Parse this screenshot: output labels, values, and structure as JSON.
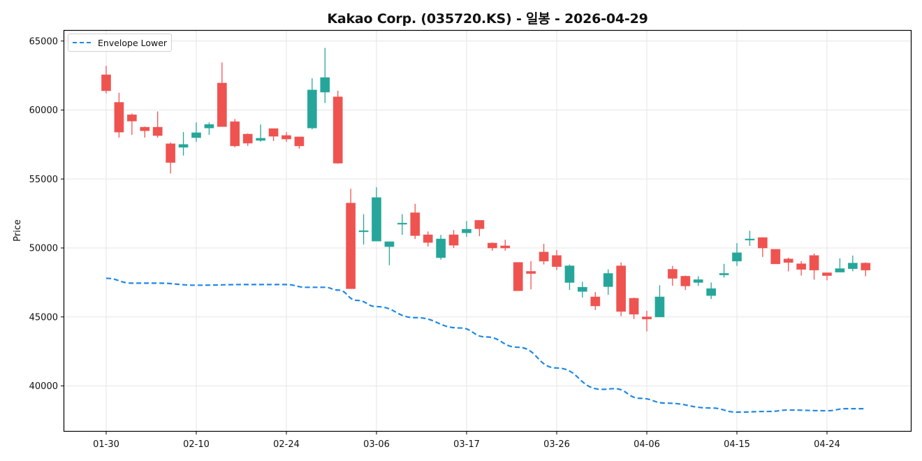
{
  "title": "Kakao Corp. (035720.KS) - 일봉 - 2026-04-29",
  "colors": {
    "up": "#26a69a",
    "down": "#ef5350",
    "envelope": "#1e88e5",
    "grid": "#e6e6e6",
    "axis": "#000000"
  },
  "legend": {
    "items": [
      {
        "label": "Envelope Lower",
        "style": "dashed",
        "color": "#1e88e5"
      }
    ]
  },
  "axes": {
    "ylabel": "Price",
    "yticks": [
      "40000",
      "45000",
      "50000",
      "55000",
      "60000",
      "65000"
    ],
    "xticks": [
      "01-30",
      "02-10",
      "02-24",
      "03-06",
      "03-17",
      "03-26",
      "04-06",
      "04-15",
      "04-24"
    ]
  },
  "chart_data": {
    "type": "candlestick",
    "title": "Kakao Corp. (035720.KS) - 일봉 - 2026-04-29",
    "xlabel": "",
    "ylabel": "Price",
    "ylim": [
      36900,
      66000
    ],
    "grid": true,
    "legend_position": "upper left",
    "xtick_labels": [
      "01-30",
      "02-10",
      "02-24",
      "03-06",
      "03-17",
      "03-26",
      "04-06",
      "04-15",
      "04-24"
    ],
    "xtick_indices": [
      0,
      7,
      14,
      21,
      28,
      35,
      42,
      49,
      56
    ],
    "ytick_values": [
      40000,
      45000,
      50000,
      55000,
      60000,
      65000
    ],
    "candles": {
      "open": [
        62550,
        60550,
        59650,
        58750,
        58750,
        57550,
        57300,
        58000,
        58700,
        61950,
        59150,
        58250,
        57800,
        58650,
        58150,
        58050,
        58700,
        61300,
        60950,
        53250,
        51200,
        50500,
        50100,
        51750,
        52550,
        50950,
        49300,
        50950,
        51100,
        52000,
        50350,
        50150,
        48950,
        48300,
        49700,
        49450,
        47500,
        46850,
        46450,
        47200,
        48700,
        46350,
        45000,
        45000,
        48450,
        47950,
        47500,
        46550,
        48050,
        49050,
        50600,
        50750,
        49900,
        49200,
        48850,
        49450,
        48200,
        48250,
        48500,
        48900
      ],
      "high": [
        63200,
        61250,
        59750,
        58800,
        59900,
        57650,
        58400,
        59100,
        59100,
        63450,
        59350,
        58300,
        58950,
        58650,
        58400,
        58050,
        62300,
        64500,
        61400,
        54300,
        52450,
        54400,
        50450,
        52450,
        53200,
        51200,
        50950,
        51300,
        51950,
        52000,
        50400,
        50600,
        48950,
        49050,
        50300,
        49850,
        48800,
        47550,
        46800,
        48450,
        48950,
        46400,
        45450,
        47300,
        48700,
        48000,
        47950,
        47500,
        48850,
        50350,
        51250,
        50750,
        49900,
        49300,
        49050,
        49600,
        48200,
        49250,
        49450,
        48950
      ],
      "low": [
        61200,
        58000,
        58200,
        58000,
        58000,
        55400,
        56700,
        57700,
        58200,
        58800,
        57300,
        57400,
        57700,
        57750,
        57700,
        57200,
        58600,
        60500,
        56100,
        47050,
        50250,
        50500,
        48750,
        50950,
        50650,
        50100,
        49150,
        50000,
        50800,
        50850,
        49800,
        49800,
        46900,
        47000,
        48800,
        48400,
        46950,
        46400,
        45500,
        46600,
        45050,
        44850,
        43950,
        45000,
        47250,
        46950,
        47250,
        46300,
        47850,
        48700,
        50150,
        49350,
        48850,
        48300,
        48000,
        47700,
        47650,
        48300,
        48300,
        47950
      ],
      "close": [
        61400,
        58400,
        59200,
        58500,
        58150,
        56200,
        57500,
        58350,
        58950,
        58800,
        57400,
        57600,
        57950,
        58100,
        57900,
        57400,
        61450,
        62350,
        56150,
        47050,
        51250,
        53650,
        50450,
        51800,
        50900,
        50400,
        50650,
        50200,
        51350,
        51400,
        50000,
        50000,
        46900,
        48150,
        49050,
        48650,
        48700,
        47150,
        45800,
        48150,
        45400,
        45200,
        44850,
        46450,
        47800,
        47250,
        47700,
        47050,
        48150,
        49650,
        50650,
        50000,
        48850,
        48950,
        48450,
        48400,
        48000,
        48500,
        48900,
        48400
      ]
    },
    "series": [
      {
        "name": "Envelope Lower",
        "style": "dashed",
        "x_index": [
          0,
          2,
          4,
          7,
          11,
          14,
          15.5,
          17,
          18,
          19.5,
          21,
          24,
          27.5,
          29.5,
          32,
          35,
          38.5,
          39.5,
          41.5,
          43.5,
          47,
          49,
          51.5,
          53,
          56,
          57.5,
          59
        ],
        "values": [
          47800,
          47450,
          47450,
          47300,
          47350,
          47350,
          47150,
          47150,
          46950,
          46200,
          45750,
          44950,
          44200,
          43550,
          42800,
          41300,
          39750,
          39800,
          39100,
          38750,
          38400,
          38100,
          38150,
          38250,
          38200,
          38350,
          38350
        ]
      }
    ]
  }
}
